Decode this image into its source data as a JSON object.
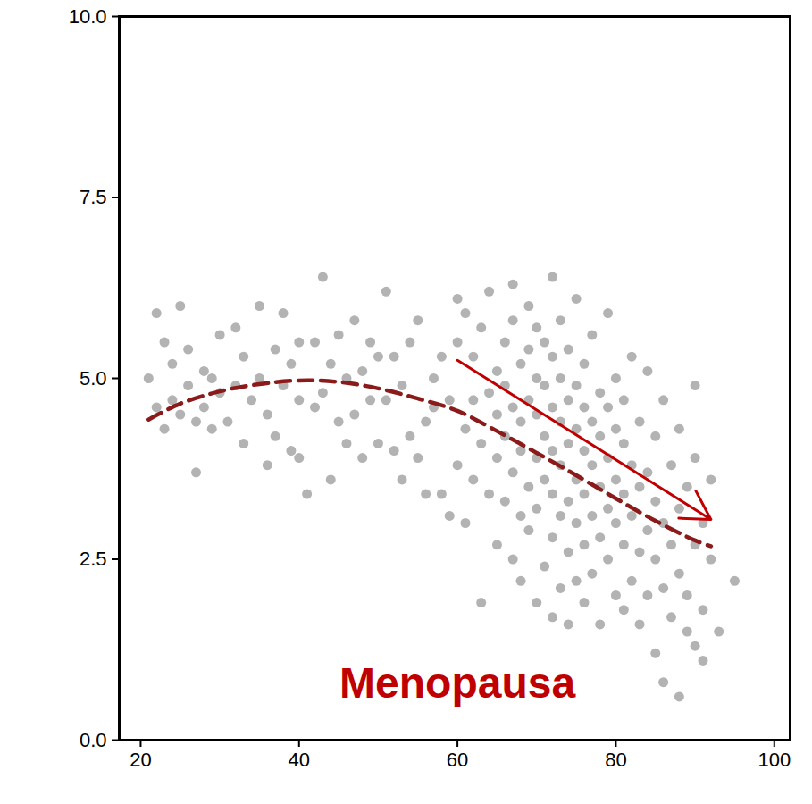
{
  "chart_data": {
    "type": "scatter",
    "xlim": [
      17.3,
      102
    ],
    "xticks": [
      20,
      40,
      60,
      80,
      100
    ],
    "ylim": [
      0,
      10
    ],
    "yticks": [
      {
        "value": 0,
        "label": "0.0"
      },
      {
        "value": 2.5,
        "label": "2.5"
      },
      {
        "value": 5,
        "label": "5.0"
      },
      {
        "value": 7.5,
        "label": "7.5"
      },
      {
        "value": 10,
        "label": "10.0"
      }
    ],
    "grid": false,
    "series": [
      {
        "type": "scatter",
        "color": "#b3b3b3",
        "marker": "circle",
        "x": [
          21,
          22,
          22,
          23,
          23,
          24,
          24,
          25,
          25,
          26,
          26,
          27,
          27,
          28,
          28,
          29,
          29,
          30,
          30,
          31,
          32,
          32,
          33,
          33,
          34,
          35,
          35,
          36,
          36,
          37,
          37,
          38,
          38,
          39,
          39,
          40,
          40,
          40,
          41,
          42,
          42,
          43,
          43,
          44,
          44,
          45,
          45,
          46,
          46,
          47,
          47,
          48,
          48,
          49,
          49,
          50,
          50,
          51,
          51,
          52,
          52,
          53,
          53,
          54,
          54,
          55,
          55,
          56,
          56,
          57,
          57,
          58,
          58,
          59,
          59,
          60,
          60,
          60,
          61,
          61,
          61,
          62,
          62,
          62,
          63,
          63,
          63,
          64,
          64,
          64,
          65,
          65,
          65,
          65,
          66,
          66,
          66,
          66,
          67,
          67,
          67,
          67,
          67,
          68,
          68,
          68,
          68,
          68,
          69,
          69,
          69,
          69,
          69,
          70,
          70,
          70,
          70,
          70,
          70,
          71,
          71,
          71,
          71,
          71,
          72,
          72,
          72,
          72,
          72,
          72,
          72,
          73,
          73,
          73,
          73,
          73,
          73,
          74,
          74,
          74,
          74,
          74,
          74,
          75,
          75,
          75,
          75,
          75,
          75,
          76,
          76,
          76,
          76,
          76,
          76,
          77,
          77,
          77,
          77,
          77,
          78,
          78,
          78,
          78,
          78,
          79,
          79,
          79,
          79,
          79,
          80,
          80,
          80,
          80,
          80,
          81,
          81,
          81,
          81,
          81,
          82,
          82,
          82,
          82,
          83,
          83,
          83,
          83,
          84,
          84,
          84,
          84,
          85,
          85,
          85,
          85,
          86,
          86,
          86,
          86,
          87,
          87,
          87,
          88,
          88,
          88,
          88,
          89,
          89,
          89,
          90,
          90,
          90,
          90,
          91,
          91,
          91,
          92,
          92,
          93,
          95
        ],
        "values": [
          5.0,
          5.9,
          4.6,
          5.5,
          4.3,
          5.2,
          4.7,
          6.0,
          4.5,
          5.4,
          4.9,
          3.7,
          4.4,
          5.1,
          4.6,
          5.0,
          4.3,
          5.6,
          4.8,
          4.4,
          4.9,
          5.7,
          5.3,
          4.1,
          4.7,
          6.0,
          5.0,
          4.5,
          3.8,
          5.4,
          4.2,
          5.9,
          4.9,
          4.0,
          5.2,
          3.9,
          4.7,
          5.5,
          3.4,
          4.6,
          5.5,
          6.4,
          4.8,
          3.6,
          5.2,
          5.6,
          4.4,
          4.1,
          5.0,
          5.8,
          4.5,
          3.9,
          5.1,
          4.7,
          5.5,
          4.1,
          5.3,
          6.2,
          4.7,
          4.0,
          5.3,
          3.6,
          4.9,
          5.5,
          4.2,
          5.8,
          3.9,
          4.4,
          3.4,
          5.0,
          4.6,
          3.4,
          5.3,
          3.1,
          4.7,
          3.8,
          5.5,
          6.1,
          4.3,
          5.9,
          3.0,
          4.7,
          5.3,
          3.6,
          1.9,
          4.1,
          5.7,
          3.4,
          4.8,
          6.2,
          3.9,
          4.5,
          5.1,
          2.7,
          3.3,
          4.9,
          5.5,
          4.2,
          2.5,
          3.7,
          4.6,
          5.8,
          6.3,
          3.1,
          4.0,
          4.4,
          5.2,
          2.2,
          3.5,
          4.7,
          5.4,
          2.9,
          6.0,
          1.9,
          3.2,
          3.9,
          4.5,
          5.0,
          5.7,
          2.4,
          3.6,
          4.2,
          4.9,
          5.5,
          1.7,
          2.8,
          3.4,
          4.0,
          4.6,
          5.3,
          6.4,
          2.1,
          3.1,
          3.8,
          4.4,
          5.0,
          5.8,
          1.6,
          2.6,
          3.3,
          4.1,
          4.7,
          5.4,
          2.2,
          3.0,
          3.6,
          4.3,
          4.9,
          6.1,
          1.9,
          2.7,
          3.4,
          4.0,
          4.6,
          5.2,
          2.3,
          3.1,
          3.8,
          4.4,
          5.6,
          1.6,
          2.8,
          3.5,
          4.2,
          4.8,
          2.5,
          3.2,
          3.9,
          4.6,
          5.9,
          2.0,
          3.0,
          3.6,
          4.3,
          5.0,
          1.8,
          2.7,
          3.4,
          4.1,
          4.7,
          2.2,
          3.1,
          3.8,
          5.3,
          1.6,
          2.6,
          3.5,
          4.4,
          2.0,
          2.9,
          3.7,
          5.1,
          1.2,
          2.5,
          3.3,
          4.2,
          0.8,
          2.1,
          3.0,
          4.7,
          1.7,
          2.7,
          3.8,
          2.3,
          3.2,
          4.3,
          0.6,
          1.5,
          2.0,
          3.5,
          1.3,
          2.7,
          3.9,
          4.9,
          1.8,
          1.1,
          3.0,
          2.5,
          3.6,
          1.5,
          2.2
        ]
      },
      {
        "type": "line",
        "color": "#8b1a1a",
        "line_style": "dashed",
        "x": [
          21,
          25,
          30,
          35,
          40,
          45,
          50,
          55,
          60,
          65,
          70,
          75,
          80,
          85,
          90,
          92
        ],
        "values": [
          4.43,
          4.65,
          4.82,
          4.92,
          4.97,
          4.95,
          4.86,
          4.72,
          4.55,
          4.27,
          3.97,
          3.66,
          3.34,
          3.03,
          2.76,
          2.68
        ]
      },
      {
        "type": "arrow",
        "color": "#c00000",
        "x": [
          60,
          92
        ],
        "values": [
          5.25,
          3.05
        ]
      }
    ],
    "annotations": [
      {
        "text": "Menopausa",
        "x": 60,
        "y": 0.78,
        "color": "#c00000"
      }
    ]
  }
}
